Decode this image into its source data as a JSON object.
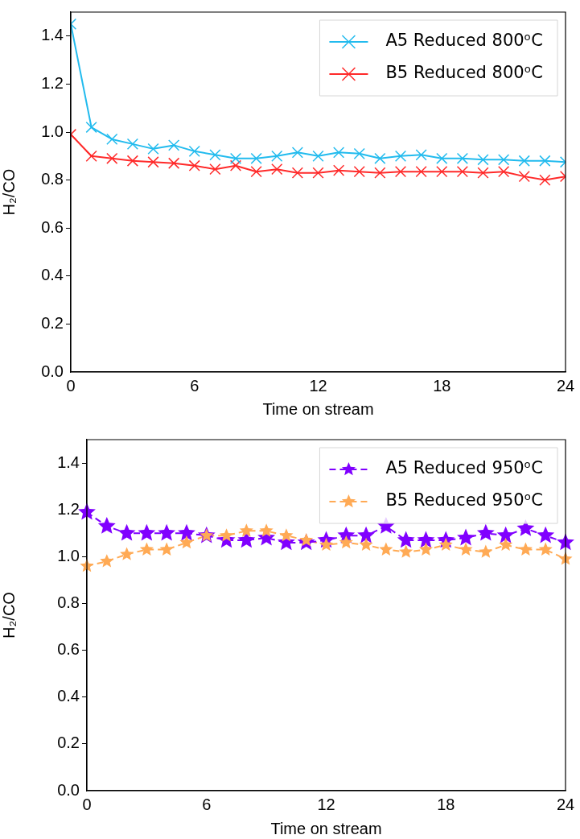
{
  "chart_data": [
    {
      "type": "line",
      "xlabel": "Time on stream",
      "ylabel": "H₂/CO",
      "x": [
        0,
        1,
        2,
        3,
        4,
        5,
        6,
        7,
        8,
        9,
        10,
        11,
        12,
        13,
        14,
        15,
        16,
        17,
        18,
        19,
        20,
        21,
        22,
        23,
        24
      ],
      "series": [
        {
          "name": "A5 Reduced 800ᵒC",
          "color": "#22bbee",
          "values": [
            1.45,
            1.02,
            0.97,
            0.95,
            0.93,
            0.945,
            0.92,
            0.905,
            0.89,
            0.89,
            0.9,
            0.915,
            0.9,
            0.915,
            0.91,
            0.89,
            0.9,
            0.905,
            0.89,
            0.89,
            0.885,
            0.885,
            0.88,
            0.88,
            0.875
          ]
        },
        {
          "name": "B5 Reduced 800ᵒC",
          "color": "#ff2a2a",
          "values": [
            0.99,
            0.9,
            0.89,
            0.88,
            0.875,
            0.87,
            0.86,
            0.845,
            0.86,
            0.835,
            0.845,
            0.83,
            0.83,
            0.84,
            0.835,
            0.83,
            0.835,
            0.835,
            0.835,
            0.835,
            0.83,
            0.835,
            0.815,
            0.8,
            0.815
          ]
        }
      ],
      "xlim": [
        0,
        24
      ],
      "xticks": [
        0,
        6,
        12,
        18,
        24
      ],
      "ylim": [
        0,
        1.5
      ],
      "yticks": [
        {
          "value": 0,
          "label": "0.0"
        },
        {
          "value": 0.2,
          "label": "0.2"
        },
        {
          "value": 0.4,
          "label": "0.4"
        },
        {
          "value": 0.6,
          "label": "0.6"
        },
        {
          "value": 0.8,
          "label": "0.8"
        },
        {
          "value": 1,
          "label": "1.0"
        },
        {
          "value": 1.2,
          "label": "1.2"
        },
        {
          "value": 1.4,
          "label": "1.4"
        }
      ],
      "legend": "top right",
      "marker": "cross",
      "line_style": "solid",
      "grid": false
    },
    {
      "type": "line",
      "xlabel": "Time on stream",
      "ylabel": "H₂/CO",
      "x": [
        0,
        1,
        2,
        3,
        4,
        5,
        6,
        7,
        8,
        9,
        10,
        11,
        12,
        13,
        14,
        15,
        16,
        17,
        18,
        19,
        20,
        21,
        22,
        23,
        24
      ],
      "series": [
        {
          "name": "A5 Reduced 950ᵒC",
          "color": "#8000ff",
          "values": [
            1.19,
            1.13,
            1.1,
            1.1,
            1.1,
            1.1,
            1.09,
            1.07,
            1.07,
            1.08,
            1.06,
            1.06,
            1.07,
            1.09,
            1.09,
            1.13,
            1.07,
            1.07,
            1.07,
            1.08,
            1.1,
            1.09,
            1.12,
            1.09,
            1.06
          ]
        },
        {
          "name": "B5 Reduced 950ᵒC",
          "color": "#ffaa55",
          "values": [
            0.96,
            0.98,
            1.01,
            1.03,
            1.03,
            1.06,
            1.09,
            1.09,
            1.11,
            1.11,
            1.09,
            1.07,
            1.05,
            1.06,
            1.05,
            1.03,
            1.02,
            1.03,
            1.05,
            1.03,
            1.02,
            1.05,
            1.03,
            1.03,
            0.99
          ]
        }
      ],
      "xlim": [
        0,
        24
      ],
      "xticks": [
        0,
        6,
        12,
        18,
        24
      ],
      "ylim": [
        0,
        1.5
      ],
      "yticks": [
        {
          "value": 0,
          "label": "0.0"
        },
        {
          "value": 0.2,
          "label": "0.2"
        },
        {
          "value": 0.4,
          "label": "0.4"
        },
        {
          "value": 0.6,
          "label": "0.6"
        },
        {
          "value": 0.8,
          "label": "0.8"
        },
        {
          "value": 1,
          "label": "1.0"
        },
        {
          "value": 1.2,
          "label": "1.2"
        },
        {
          "value": 1.4,
          "label": "1.4"
        }
      ],
      "legend": "top right",
      "marker": "star",
      "line_style": "dashed",
      "grid": false
    }
  ]
}
